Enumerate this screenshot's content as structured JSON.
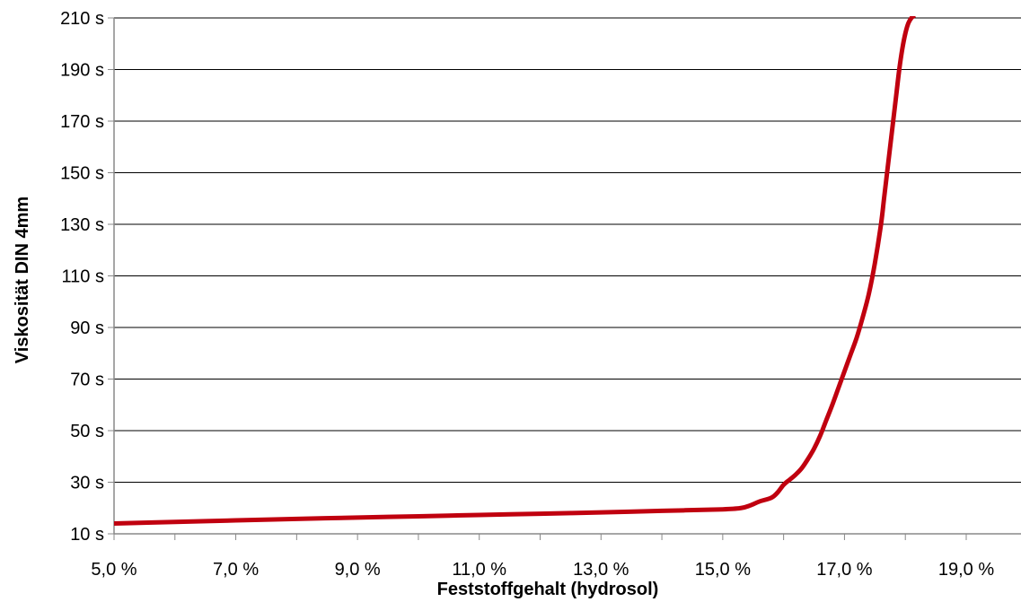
{
  "chart_data": {
    "type": "line",
    "title": "",
    "xlabel": "Feststoffgehalt (hydrosol)",
    "ylabel": "Viskosität DIN 4mm",
    "xlim": [
      5.0,
      19.9
    ],
    "ylim": [
      10,
      210
    ],
    "x_ticks": [
      5.0,
      7.0,
      9.0,
      11.0,
      13.0,
      15.0,
      17.0,
      19.0
    ],
    "x_tick_labels": [
      "5,0 %",
      "7,0 %",
      "9,0 %",
      "11,0 %",
      "13,0 %",
      "15,0 %",
      "17,0 %",
      "19,0 %"
    ],
    "y_ticks": [
      10,
      30,
      50,
      70,
      90,
      110,
      130,
      150,
      170,
      190,
      210
    ],
    "y_tick_labels": [
      "10 s",
      "30 s",
      "50 s",
      "70 s",
      "90 s",
      "110 s",
      "130 s",
      "150 s",
      "170 s",
      "190 s",
      "210 s"
    ],
    "grid": "horizontal",
    "legend": "none",
    "series": [
      {
        "color": "#c0000f",
        "x": [
          5.0,
          6.0,
          7.0,
          8.0,
          9.0,
          10.0,
          11.0,
          12.0,
          13.0,
          14.0,
          15.0,
          15.3,
          15.45,
          15.6,
          15.8,
          15.9,
          16.0,
          16.1,
          16.2,
          16.3,
          16.4,
          16.5,
          16.6,
          16.7,
          16.8,
          16.9,
          17.0,
          17.1,
          17.2,
          17.3,
          17.4,
          17.5,
          17.6,
          17.65,
          17.7,
          17.75,
          17.8,
          17.85,
          17.9,
          17.95,
          18.0,
          18.05,
          18.1,
          18.15
        ],
        "y": [
          14,
          14.6,
          15.2,
          15.8,
          16.3,
          16.8,
          17.3,
          17.8,
          18.3,
          18.9,
          19.5,
          20,
          21,
          22.5,
          24,
          26,
          29,
          31,
          33,
          35.5,
          39,
          43,
          48,
          54,
          60,
          66.5,
          73,
          79.5,
          86,
          94,
          103,
          115,
          130,
          140,
          150,
          160,
          170,
          180,
          190,
          198,
          204,
          208,
          210,
          211
        ]
      }
    ]
  },
  "colors": {
    "line": "#c0000f",
    "gridline": "#000000",
    "axis": "#888888",
    "background": "#ffffff"
  }
}
